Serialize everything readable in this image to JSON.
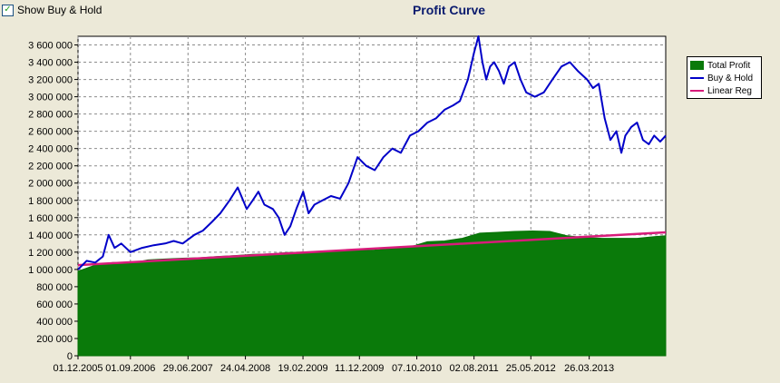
{
  "toolbar": {
    "checkbox_checked": true,
    "checkbox_label": "Show Buy & Hold"
  },
  "chart_data": {
    "type": "area",
    "title": "Profit Curve",
    "xlabel": "",
    "ylabel": "",
    "grid": true,
    "legend_position": "right",
    "ylim": [
      0,
      3700000
    ],
    "xlim": [
      "2005-12-01",
      "2014-04-30"
    ],
    "x_tick_labels": [
      "01.12.2005",
      "01.09.2006",
      "29.06.2007",
      "24.04.2008",
      "19.02.2009",
      "11.12.2009",
      "07.10.2010",
      "02.08.2011",
      "25.05.2012",
      "26.03.2013"
    ],
    "y_tick_labels": [
      "0",
      "200 000",
      "400 000",
      "600 000",
      "800 000",
      "1 000 000",
      "1 200 000",
      "1 400 000",
      "1 600 000",
      "1 800 000",
      "2 000 000",
      "2 200 000",
      "2 400 000",
      "2 600 000",
      "2 800 000",
      "3 000 000",
      "3 200 000",
      "3 400 000",
      "3 600 000"
    ],
    "y_tick_values": [
      0,
      200000,
      400000,
      600000,
      800000,
      1000000,
      1200000,
      1400000,
      1600000,
      1800000,
      2000000,
      2200000,
      2400000,
      2600000,
      2800000,
      3000000,
      3200000,
      3400000,
      3600000
    ],
    "series": [
      {
        "name": "Total Profit",
        "type": "area",
        "color": "#0a7a0a",
        "x": [
          "2005-12-01",
          "2006-03-01",
          "2006-06-01",
          "2006-09-01",
          "2006-12-01",
          "2007-03-01",
          "2007-06-01",
          "2007-09-01",
          "2007-12-01",
          "2008-03-01",
          "2008-06-01",
          "2008-09-01",
          "2008-12-01",
          "2009-03-01",
          "2009-06-01",
          "2009-09-01",
          "2009-12-01",
          "2010-03-01",
          "2010-06-01",
          "2010-09-01",
          "2010-12-01",
          "2011-03-01",
          "2011-06-01",
          "2011-09-01",
          "2011-12-01",
          "2012-03-01",
          "2012-06-01",
          "2012-09-01",
          "2012-12-01",
          "2013-03-01",
          "2013-06-01",
          "2013-09-01",
          "2013-12-01",
          "2014-03-01",
          "2014-04-30"
        ],
        "values": [
          980000,
          1050000,
          1080000,
          1070000,
          1110000,
          1120000,
          1130000,
          1135000,
          1150000,
          1160000,
          1175000,
          1180000,
          1195000,
          1200000,
          1205000,
          1210000,
          1220000,
          1225000,
          1240000,
          1260000,
          1320000,
          1330000,
          1360000,
          1420000,
          1430000,
          1440000,
          1445000,
          1440000,
          1390000,
          1370000,
          1360000,
          1360000,
          1360000,
          1380000,
          1390000
        ]
      },
      {
        "name": "Buy & Hold",
        "type": "line",
        "color": "#0000c8",
        "x": [
          "2005-12-01",
          "2006-01-15",
          "2006-03-01",
          "2006-04-10",
          "2006-05-10",
          "2006-06-10",
          "2006-07-15",
          "2006-09-01",
          "2006-11-01",
          "2007-01-01",
          "2007-03-01",
          "2007-04-15",
          "2007-06-01",
          "2007-08-01",
          "2007-09-15",
          "2007-11-01",
          "2007-12-15",
          "2008-02-01",
          "2008-03-15",
          "2008-05-01",
          "2008-06-01",
          "2008-07-01",
          "2008-08-01",
          "2008-09-15",
          "2008-10-15",
          "2008-11-15",
          "2008-12-15",
          "2009-01-15",
          "2009-02-20",
          "2009-03-20",
          "2009-04-20",
          "2009-06-01",
          "2009-07-15",
          "2009-09-01",
          "2009-10-15",
          "2009-12-01",
          "2010-01-15",
          "2010-03-01",
          "2010-04-15",
          "2010-06-01",
          "2010-07-15",
          "2010-09-01",
          "2010-10-15",
          "2010-12-01",
          "2011-01-15",
          "2011-03-01",
          "2011-04-15",
          "2011-05-20",
          "2011-07-01",
          "2011-08-01",
          "2011-08-25",
          "2011-09-15",
          "2011-10-05",
          "2011-10-25",
          "2011-11-15",
          "2011-12-10",
          "2012-01-05",
          "2012-02-01",
          "2012-03-01",
          "2012-04-01",
          "2012-05-01",
          "2012-06-15",
          "2012-08-01",
          "2012-09-15",
          "2012-11-01",
          "2012-12-15",
          "2013-01-25",
          "2013-03-15",
          "2013-04-15",
          "2013-05-15",
          "2013-06-15",
          "2013-07-15",
          "2013-08-15",
          "2013-09-10",
          "2013-10-01",
          "2013-11-01",
          "2013-12-01",
          "2014-01-01",
          "2014-02-01",
          "2014-03-01",
          "2014-04-01",
          "2014-04-30"
        ],
        "values": [
          1000000,
          1100000,
          1080000,
          1150000,
          1400000,
          1250000,
          1300000,
          1200000,
          1250000,
          1280000,
          1300000,
          1330000,
          1300000,
          1400000,
          1450000,
          1550000,
          1650000,
          1800000,
          1950000,
          1700000,
          1800000,
          1900000,
          1750000,
          1700000,
          1600000,
          1400000,
          1500000,
          1700000,
          1900000,
          1650000,
          1750000,
          1800000,
          1850000,
          1820000,
          2000000,
          2300000,
          2200000,
          2150000,
          2300000,
          2400000,
          2350000,
          2550000,
          2600000,
          2700000,
          2750000,
          2850000,
          2900000,
          2950000,
          3200000,
          3500000,
          3700000,
          3400000,
          3200000,
          3350000,
          3400000,
          3300000,
          3150000,
          3350000,
          3400000,
          3200000,
          3050000,
          3000000,
          3050000,
          3200000,
          3350000,
          3400000,
          3300000,
          3200000,
          3100000,
          3150000,
          2750000,
          2500000,
          2600000,
          2350000,
          2550000,
          2650000,
          2700000,
          2500000,
          2450000,
          2550000,
          2480000,
          2550000
        ]
      },
      {
        "name": "Linear Reg",
        "type": "line",
        "color": "#d81b7a",
        "x": [
          "2005-12-01",
          "2014-04-30"
        ],
        "values": [
          1050000,
          1430000
        ]
      }
    ]
  }
}
